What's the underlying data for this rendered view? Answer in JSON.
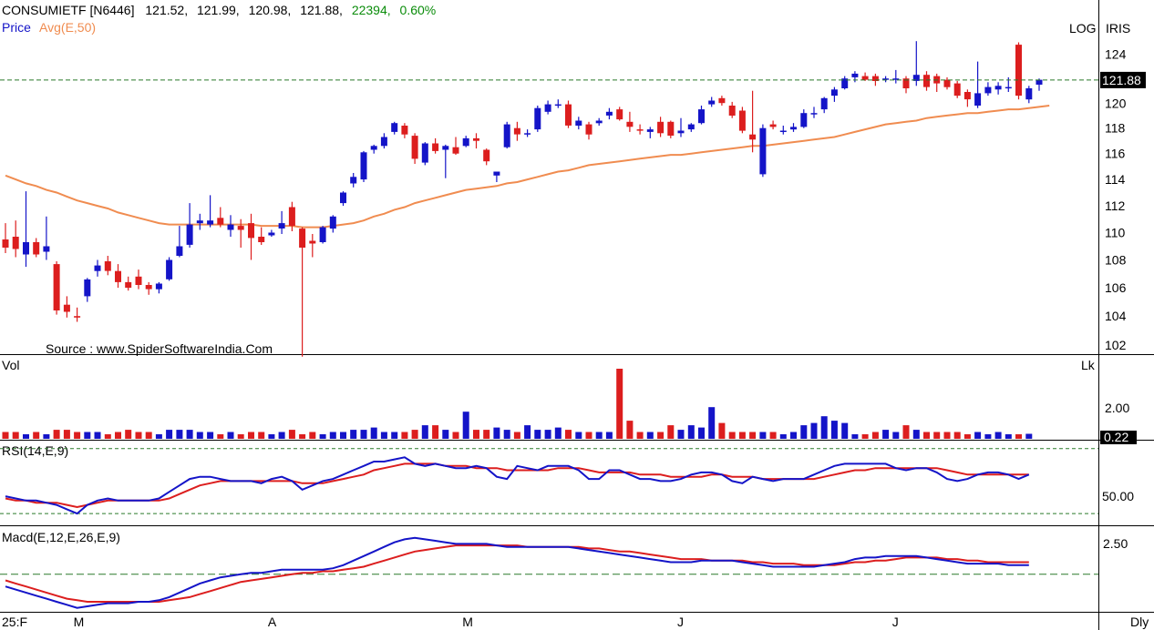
{
  "header": {
    "symbol": "CONSUMIETF [N6446]",
    "open": "121.52,",
    "high": "121.99,",
    "low": "120.98,",
    "close": "121.88,",
    "volume": "22394,",
    "change": "0.60%",
    "price_label": "Price",
    "avg_label": "Avg(E,50)",
    "scale_mode": "LOG",
    "theme": "IRIS",
    "source": "Source : www.SpiderSoftwareIndia.Com"
  },
  "colors": {
    "up": "#1414c8",
    "down": "#dc1e1e",
    "ema": "#f08c50",
    "rsi": "#1414c8",
    "rsi_signal": "#dc1e1e",
    "macd": "#1414c8",
    "macd_signal": "#dc1e1e",
    "volume_positive": "#0a8c0a",
    "change_positive": "#0a8c0a"
  },
  "panels": {
    "vol_label": "Vol",
    "vol_unit": "Lk",
    "vol_tick": "2.00",
    "vol_last": "0.22",
    "rsi_label": "RSI(14,E,9)",
    "rsi_tick": "50.00",
    "macd_label": "Macd(E,12,E,26,E,9)",
    "macd_tick": "2.50",
    "period": "Dly"
  },
  "chart_data": {
    "type": "candlestick",
    "price_axis": {
      "scale": "log",
      "ticks": [
        "102",
        "104",
        "106",
        "108",
        "110",
        "112",
        "114",
        "116",
        "118",
        "120",
        "122",
        "124"
      ],
      "range": [
        101.5,
        125.5
      ],
      "reference_line": 121.88,
      "last_label": "121.88"
    },
    "x_labels": [
      {
        "label": "25:F",
        "bar": 0
      },
      {
        "label": "M",
        "bar": 7
      },
      {
        "label": "A",
        "bar": 26
      },
      {
        "label": "M",
        "bar": 45
      },
      {
        "label": "J",
        "bar": 66
      },
      {
        "label": "J",
        "bar": 87
      }
    ],
    "candles": [
      [
        109.5,
        110.7,
        108.5,
        108.9
      ],
      [
        109.7,
        110.9,
        108.2,
        108.8
      ],
      [
        108.4,
        113.1,
        107.5,
        109.3
      ],
      [
        109.3,
        109.6,
        108.2,
        108.4
      ],
      [
        108.6,
        111.2,
        108.0,
        109.0
      ],
      [
        107.7,
        107.9,
        104.1,
        104.4
      ],
      [
        104.8,
        105.4,
        103.9,
        104.3
      ],
      [
        104.0,
        104.6,
        103.6,
        103.9
      ],
      [
        105.4,
        106.7,
        105.0,
        106.6
      ],
      [
        107.2,
        108.0,
        106.8,
        107.6
      ],
      [
        107.9,
        108.3,
        106.9,
        107.2
      ],
      [
        107.2,
        107.7,
        106.0,
        106.4
      ],
      [
        106.4,
        106.8,
        105.8,
        106.0
      ],
      [
        106.8,
        107.3,
        105.9,
        106.2
      ],
      [
        106.2,
        106.4,
        105.5,
        105.9
      ],
      [
        105.9,
        106.4,
        105.6,
        106.3
      ],
      [
        106.6,
        108.2,
        106.5,
        108.0
      ],
      [
        108.3,
        110.5,
        108.2,
        109.0
      ],
      [
        109.1,
        112.2,
        108.9,
        110.6
      ],
      [
        110.7,
        111.4,
        110.2,
        110.9
      ],
      [
        110.6,
        112.8,
        110.4,
        110.9
      ],
      [
        111.1,
        111.9,
        110.4,
        110.6
      ],
      [
        110.2,
        111.3,
        109.7,
        110.6
      ],
      [
        110.5,
        111.0,
        108.9,
        110.2
      ],
      [
        110.7,
        111.4,
        108.0,
        109.6
      ],
      [
        109.7,
        110.4,
        109.1,
        109.3
      ],
      [
        109.8,
        110.2,
        109.7,
        110.0
      ],
      [
        110.3,
        111.6,
        109.9,
        110.7
      ],
      [
        111.9,
        112.3,
        110.1,
        110.5
      ],
      [
        110.3,
        110.4,
        101.2,
        108.9
      ],
      [
        109.4,
        109.9,
        108.2,
        109.2
      ],
      [
        109.3,
        110.5,
        109.2,
        110.4
      ],
      [
        110.3,
        111.3,
        110.0,
        111.2
      ],
      [
        112.2,
        113.1,
        112.0,
        113.0
      ],
      [
        113.7,
        114.5,
        113.4,
        114.2
      ],
      [
        114.0,
        116.2,
        113.8,
        116.1
      ],
      [
        116.3,
        116.7,
        116.0,
        116.6
      ],
      [
        116.6,
        117.6,
        116.4,
        117.3
      ],
      [
        117.7,
        118.5,
        117.5,
        118.4
      ],
      [
        118.2,
        118.4,
        117.2,
        117.5
      ],
      [
        117.4,
        117.6,
        115.2,
        115.6
      ],
      [
        115.3,
        116.9,
        115.1,
        116.8
      ],
      [
        116.8,
        117.2,
        116.0,
        116.2
      ],
      [
        116.3,
        116.7,
        114.1,
        116.6
      ],
      [
        116.5,
        117.3,
        115.9,
        116.0
      ],
      [
        116.6,
        117.4,
        116.5,
        117.2
      ],
      [
        117.2,
        117.6,
        116.4,
        117.0
      ],
      [
        116.3,
        116.4,
        115.1,
        115.4
      ],
      [
        114.3,
        114.6,
        113.8,
        114.6
      ],
      [
        116.5,
        118.5,
        116.4,
        118.3
      ],
      [
        118.0,
        118.5,
        117.0,
        117.5
      ],
      [
        117.5,
        117.9,
        117.3,
        117.6
      ],
      [
        117.9,
        119.8,
        117.7,
        119.6
      ],
      [
        119.3,
        120.2,
        119.1,
        119.9
      ],
      [
        119.9,
        120.3,
        119.6,
        119.9
      ],
      [
        119.9,
        120.2,
        118.0,
        118.2
      ],
      [
        118.2,
        118.9,
        117.9,
        118.6
      ],
      [
        118.3,
        118.5,
        117.1,
        117.5
      ],
      [
        118.4,
        118.8,
        118.2,
        118.6
      ],
      [
        119.0,
        119.6,
        118.7,
        119.3
      ],
      [
        119.5,
        119.7,
        118.6,
        118.7
      ],
      [
        118.5,
        119.3,
        117.7,
        118.1
      ],
      [
        117.9,
        118.3,
        117.5,
        117.8
      ],
      [
        117.7,
        118.1,
        117.2,
        117.9
      ],
      [
        118.5,
        118.9,
        117.3,
        117.6
      ],
      [
        118.5,
        118.6,
        117.2,
        117.4
      ],
      [
        117.6,
        118.8,
        117.3,
        117.8
      ],
      [
        117.9,
        118.4,
        117.7,
        118.3
      ],
      [
        118.4,
        119.8,
        118.3,
        119.5
      ],
      [
        119.9,
        120.5,
        119.7,
        120.2
      ],
      [
        120.4,
        120.6,
        119.8,
        120.0
      ],
      [
        119.8,
        120.1,
        118.8,
        119.0
      ],
      [
        119.4,
        119.7,
        117.6,
        117.8
      ],
      [
        117.5,
        121.0,
        116.1,
        117.1
      ],
      [
        114.4,
        118.3,
        114.2,
        118.0
      ],
      [
        118.3,
        118.6,
        117.9,
        118.1
      ],
      [
        117.7,
        118.2,
        117.5,
        117.8
      ],
      [
        117.9,
        118.4,
        117.7,
        118.1
      ],
      [
        118.1,
        119.5,
        118.0,
        119.2
      ],
      [
        119.2,
        119.7,
        118.8,
        119.2
      ],
      [
        119.5,
        120.5,
        119.2,
        120.4
      ],
      [
        120.6,
        121.3,
        120.1,
        121.1
      ],
      [
        121.2,
        122.2,
        121.1,
        122.0
      ],
      [
        122.1,
        122.6,
        121.7,
        122.4
      ],
      [
        122.2,
        122.5,
        121.8,
        121.9
      ],
      [
        122.2,
        122.4,
        121.4,
        121.8
      ],
      [
        121.9,
        122.2,
        121.7,
        122.0
      ],
      [
        121.9,
        122.7,
        121.6,
        122.0
      ],
      [
        122.0,
        122.2,
        120.8,
        121.2
      ],
      [
        121.8,
        125.1,
        121.4,
        122.3
      ],
      [
        122.3,
        122.6,
        121.0,
        121.3
      ],
      [
        122.2,
        122.4,
        120.9,
        121.6
      ],
      [
        121.9,
        122.1,
        121.1,
        121.3
      ],
      [
        121.6,
        121.8,
        120.4,
        120.6
      ],
      [
        120.9,
        121.1,
        119.7,
        120.3
      ],
      [
        119.8,
        123.4,
        119.6,
        120.8
      ],
      [
        120.8,
        121.7,
        120.6,
        121.3
      ],
      [
        121.1,
        121.7,
        120.7,
        121.4
      ],
      [
        121.3,
        122.1,
        120.9,
        121.3
      ],
      [
        124.8,
        125.0,
        120.3,
        120.6
      ],
      [
        120.3,
        121.4,
        120.0,
        121.2
      ],
      [
        121.5,
        122.0,
        121.0,
        121.9
      ]
    ],
    "ema50": [
      114.3,
      114.0,
      113.7,
      113.5,
      113.2,
      113.0,
      112.7,
      112.4,
      112.2,
      112.0,
      111.8,
      111.5,
      111.3,
      111.1,
      110.9,
      110.7,
      110.6,
      110.6,
      110.6,
      110.6,
      110.6,
      110.6,
      110.6,
      110.6,
      110.6,
      110.5,
      110.5,
      110.5,
      110.5,
      110.4,
      110.4,
      110.4,
      110.5,
      110.6,
      110.7,
      110.9,
      111.2,
      111.4,
      111.7,
      111.9,
      112.2,
      112.4,
      112.6,
      112.8,
      113.0,
      113.2,
      113.3,
      113.4,
      113.5,
      113.7,
      113.8,
      114.0,
      114.2,
      114.4,
      114.6,
      114.7,
      114.9,
      115.1,
      115.2,
      115.3,
      115.4,
      115.5,
      115.6,
      115.7,
      115.8,
      115.9,
      115.9,
      116.0,
      116.1,
      116.2,
      116.3,
      116.4,
      116.5,
      116.6,
      116.6,
      116.7,
      116.8,
      116.9,
      117.0,
      117.1,
      117.2,
      117.3,
      117.5,
      117.7,
      117.9,
      118.1,
      118.3,
      118.4,
      118.5,
      118.6,
      118.8,
      118.9,
      119.0,
      119.1,
      119.2,
      119.2,
      119.3,
      119.4,
      119.5,
      119.5,
      119.6,
      119.7,
      119.8
    ],
    "volume": [
      0.3,
      0.3,
      0.2,
      0.3,
      0.2,
      0.4,
      0.4,
      0.3,
      0.3,
      0.3,
      0.2,
      0.3,
      0.4,
      0.3,
      0.3,
      0.2,
      0.4,
      0.4,
      0.4,
      0.3,
      0.3,
      0.2,
      0.3,
      0.2,
      0.3,
      0.3,
      0.2,
      0.3,
      0.4,
      0.2,
      0.3,
      0.2,
      0.3,
      0.3,
      0.4,
      0.4,
      0.5,
      0.3,
      0.3,
      0.3,
      0.4,
      0.6,
      0.6,
      0.4,
      0.3,
      1.2,
      0.4,
      0.4,
      0.5,
      0.4,
      0.3,
      0.6,
      0.4,
      0.4,
      0.5,
      0.4,
      0.3,
      0.3,
      0.3,
      0.3,
      3.1,
      0.8,
      0.3,
      0.3,
      0.3,
      0.6,
      0.4,
      0.6,
      0.5,
      1.4,
      0.7,
      0.3,
      0.3,
      0.3,
      0.3,
      0.3,
      0.2,
      0.3,
      0.6,
      0.7,
      1.0,
      0.8,
      0.7,
      0.2,
      0.2,
      0.3,
      0.4,
      0.3,
      0.6,
      0.4,
      0.3,
      0.3,
      0.3,
      0.3,
      0.2,
      0.3,
      0.2,
      0.3,
      0.2,
      0.2,
      0.22
    ],
    "rsi": [
      48,
      47,
      46,
      46,
      45,
      44,
      42,
      40,
      44,
      46,
      47,
      46,
      46,
      46,
      46,
      47,
      50,
      53,
      56,
      57,
      57,
      56,
      55,
      55,
      55,
      54,
      56,
      57,
      55,
      51,
      53,
      55,
      56,
      58,
      60,
      62,
      64,
      64,
      65,
      66,
      63,
      62,
      63,
      62,
      61,
      61,
      62,
      61,
      57,
      56,
      62,
      61,
      60,
      62,
      62,
      62,
      60,
      56,
      56,
      60,
      60,
      58,
      56,
      56,
      55,
      55,
      56,
      58,
      59,
      59,
      58,
      55,
      54,
      57,
      56,
      55,
      56,
      56,
      56,
      58,
      60,
      62,
      63,
      63,
      63,
      63,
      63,
      61,
      60,
      61,
      61,
      59,
      56,
      55,
      56,
      58,
      59,
      59,
      58,
      56,
      58
    ],
    "rsi_signal": [
      47,
      46,
      46,
      45,
      45,
      45,
      44,
      43,
      44,
      45,
      46,
      46,
      46,
      46,
      46,
      46,
      47,
      49,
      51,
      53,
      54,
      55,
      55,
      55,
      55,
      55,
      55,
      55,
      55,
      54,
      54,
      54,
      55,
      56,
      57,
      58,
      60,
      61,
      62,
      63,
      63,
      63,
      63,
      62,
      62,
      62,
      61,
      61,
      61,
      60,
      60,
      60,
      60,
      60,
      61,
      61,
      61,
      60,
      59,
      59,
      59,
      59,
      58,
      58,
      58,
      57,
      57,
      57,
      57,
      58,
      58,
      57,
      57,
      57,
      56,
      56,
      56,
      56,
      56,
      56,
      57,
      58,
      59,
      60,
      60,
      61,
      61,
      61,
      61,
      61,
      61,
      61,
      60,
      59,
      58,
      58,
      58,
      58,
      58,
      58,
      58
    ],
    "macd": [
      -0.8,
      -1.0,
      -1.2,
      -1.4,
      -1.6,
      -1.8,
      -2.0,
      -2.2,
      -2.1,
      -2.0,
      -1.9,
      -1.9,
      -1.9,
      -1.8,
      -1.8,
      -1.7,
      -1.5,
      -1.2,
      -0.9,
      -0.6,
      -0.4,
      -0.2,
      -0.1,
      0.0,
      0.1,
      0.1,
      0.2,
      0.3,
      0.3,
      0.3,
      0.3,
      0.3,
      0.4,
      0.6,
      0.9,
      1.2,
      1.5,
      1.8,
      2.1,
      2.3,
      2.4,
      2.3,
      2.2,
      2.1,
      2.0,
      2.0,
      2.0,
      2.0,
      1.9,
      1.8,
      1.8,
      1.8,
      1.8,
      1.8,
      1.8,
      1.8,
      1.7,
      1.6,
      1.5,
      1.4,
      1.3,
      1.2,
      1.1,
      1.0,
      0.9,
      0.8,
      0.8,
      0.8,
      0.9,
      0.9,
      0.9,
      0.9,
      0.8,
      0.7,
      0.6,
      0.5,
      0.5,
      0.5,
      0.5,
      0.5,
      0.6,
      0.7,
      0.8,
      1.0,
      1.1,
      1.1,
      1.2,
      1.2,
      1.2,
      1.2,
      1.1,
      1.0,
      0.9,
      0.8,
      0.7,
      0.7,
      0.7,
      0.7,
      0.6,
      0.6,
      0.6
    ],
    "macd_signal": [
      -0.4,
      -0.6,
      -0.8,
      -1.0,
      -1.2,
      -1.4,
      -1.6,
      -1.7,
      -1.8,
      -1.8,
      -1.8,
      -1.8,
      -1.8,
      -1.8,
      -1.8,
      -1.8,
      -1.7,
      -1.6,
      -1.5,
      -1.3,
      -1.1,
      -0.9,
      -0.7,
      -0.5,
      -0.4,
      -0.3,
      -0.2,
      -0.1,
      0.0,
      0.1,
      0.1,
      0.2,
      0.2,
      0.3,
      0.4,
      0.5,
      0.7,
      0.9,
      1.1,
      1.3,
      1.5,
      1.6,
      1.7,
      1.8,
      1.9,
      1.9,
      1.9,
      1.9,
      1.9,
      1.9,
      1.9,
      1.8,
      1.8,
      1.8,
      1.8,
      1.8,
      1.8,
      1.7,
      1.7,
      1.6,
      1.5,
      1.5,
      1.4,
      1.3,
      1.2,
      1.1,
      1.0,
      1.0,
      1.0,
      0.9,
      0.9,
      0.9,
      0.9,
      0.8,
      0.8,
      0.7,
      0.7,
      0.7,
      0.6,
      0.6,
      0.6,
      0.6,
      0.7,
      0.8,
      0.8,
      0.9,
      0.9,
      1.0,
      1.1,
      1.1,
      1.1,
      1.1,
      1.0,
      1.0,
      0.9,
      0.9,
      0.8,
      0.8,
      0.8,
      0.8,
      0.8
    ]
  }
}
